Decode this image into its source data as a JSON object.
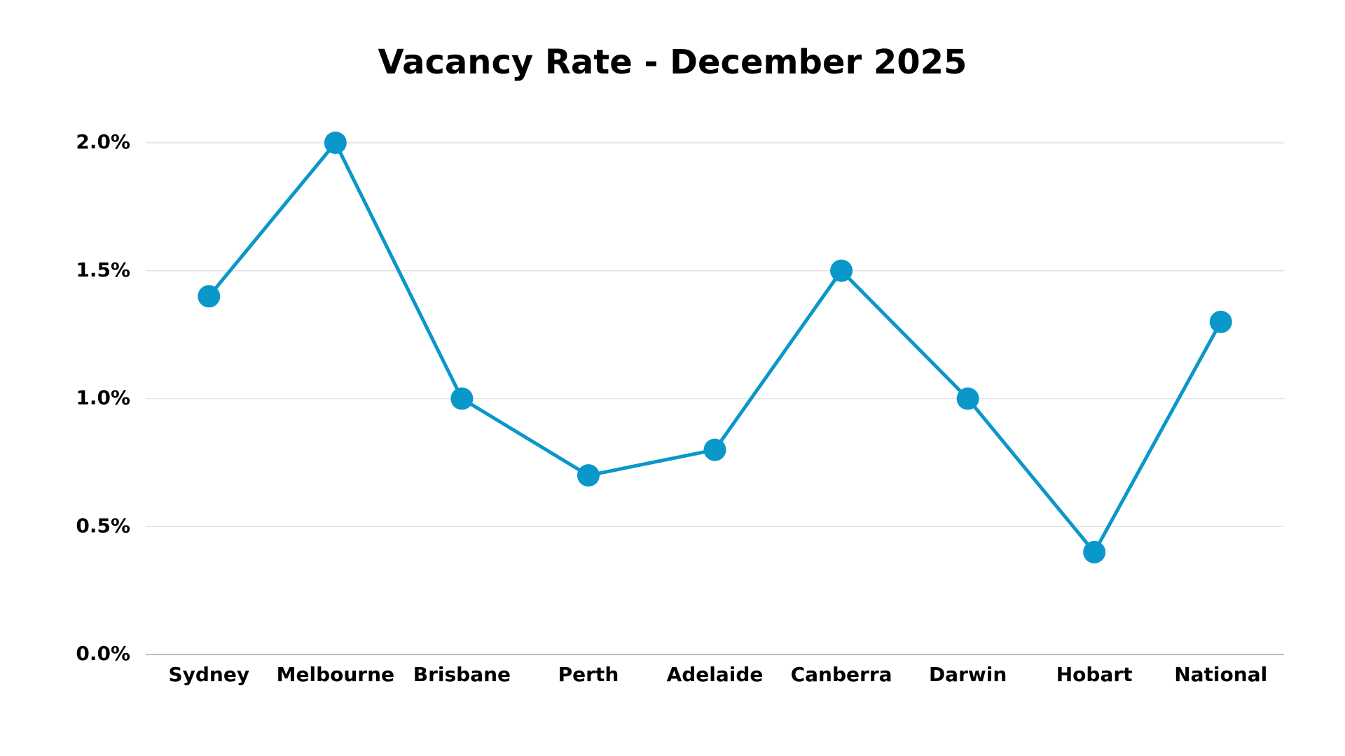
{
  "chart_data": {
    "type": "line",
    "title": "Vacancy Rate - December 2025",
    "categories": [
      "Sydney",
      "Melbourne",
      "Brisbane",
      "Perth",
      "Adelaide",
      "Canberra",
      "Darwin",
      "Hobart",
      "National"
    ],
    "values": [
      1.4,
      2.0,
      1.0,
      0.7,
      0.8,
      1.5,
      1.0,
      0.4,
      1.3
    ],
    "color": "#0a97c9",
    "ylim": [
      0,
      2
    ],
    "yticks": [
      {
        "value": 0,
        "label": "0.0%"
      },
      {
        "value": 0.5,
        "label": "0.5%"
      },
      {
        "value": 1,
        "label": "1.0%"
      },
      {
        "value": 1.5,
        "label": "1.5%"
      },
      {
        "value": 2,
        "label": "2.0%"
      }
    ],
    "grid": true
  }
}
